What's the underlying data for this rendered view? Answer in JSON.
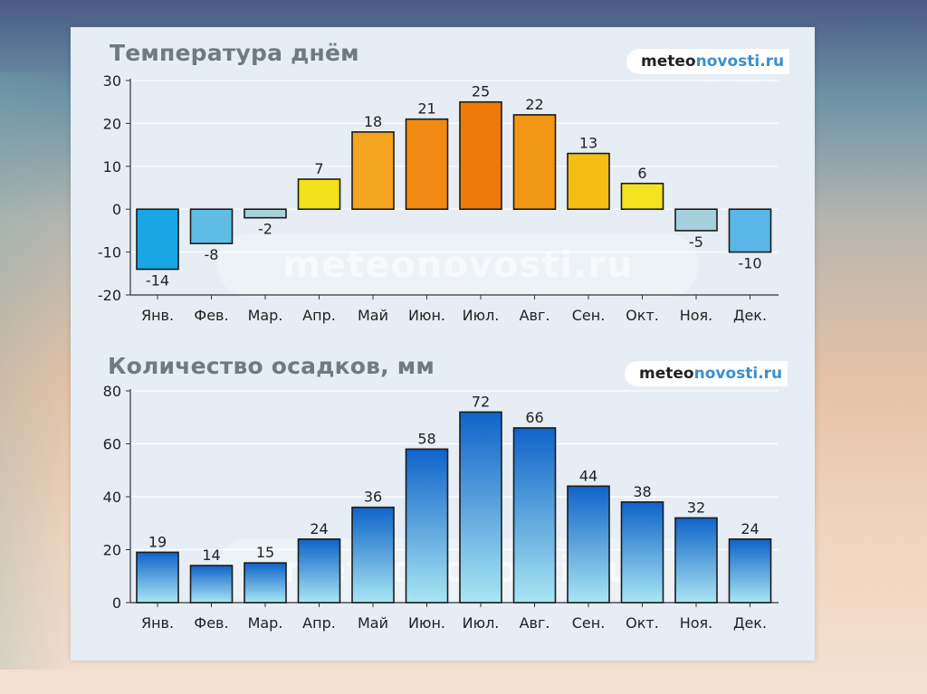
{
  "brand": {
    "part1": "meteo",
    "part2": "novosti.ru",
    "watermark": "meteonovosti.ru"
  },
  "chart_data": [
    {
      "type": "bar",
      "title": "Температура днём",
      "categories": [
        "Янв.",
        "Фев.",
        "Мар.",
        "Апр.",
        "Май",
        "Июн.",
        "Июл.",
        "Авг.",
        "Сен.",
        "Окт.",
        "Ноя.",
        "Дек."
      ],
      "values": [
        -14,
        -8,
        -2,
        7,
        18,
        21,
        25,
        22,
        13,
        6,
        -5,
        -10
      ],
      "ylim": [
        -20,
        30
      ],
      "yticks": [
        -20,
        -10,
        0,
        10,
        20,
        30
      ],
      "grid": true,
      "colors": [
        "#1aa6e4",
        "#60bde5",
        "#a4d2d7",
        "#f1e21b",
        "#f4a41e",
        "#f18a12",
        "#ee7a09",
        "#f29714",
        "#f6bd14",
        "#f4e31f",
        "#a6d0db",
        "#5bb7e8"
      ]
    },
    {
      "type": "bar",
      "title": "Количество осадков, мм",
      "categories": [
        "Янв.",
        "Фев.",
        "Мар.",
        "Апр.",
        "Май",
        "Июн.",
        "Июл.",
        "Авг.",
        "Сен.",
        "Окт.",
        "Ноя.",
        "Дек."
      ],
      "values": [
        19,
        14,
        15,
        24,
        36,
        58,
        72,
        66,
        44,
        38,
        32,
        24
      ],
      "ylim": [
        0,
        80
      ],
      "yticks": [
        0,
        20,
        40,
        60,
        80
      ],
      "grid": true,
      "bar_gradient": [
        "#0f63c9",
        "#a9e6f2"
      ]
    }
  ]
}
